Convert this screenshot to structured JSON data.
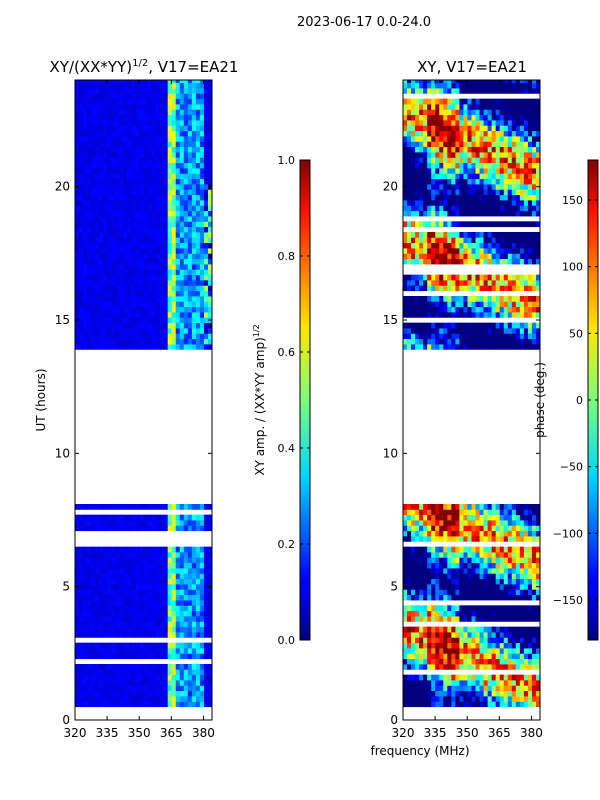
{
  "figure": {
    "suptitle": "2023-06-17 0.0-24.0",
    "shared_xlabel": "frequency (MHz)"
  },
  "chart_data": [
    {
      "type": "heatmap",
      "title": "XY/(XX*YY)",
      "title_exponent": "1/2",
      "title_suffix": ", V17=EA21",
      "xlabel": "",
      "ylabel": "UT (hours)",
      "xlim": [
        320,
        384
      ],
      "ylim": [
        0,
        24
      ],
      "xticks": [
        320,
        335,
        350,
        365,
        380
      ],
      "yticks": [
        0,
        5,
        10,
        15,
        20
      ],
      "data_gap_hours": [
        8.1,
        13.8
      ],
      "colorbar": {
        "label": "XY amp. / (XX*YY amp)",
        "label_exponent": "1/2",
        "range": [
          0.0,
          1.0
        ],
        "ticks": [
          "0.0",
          "0.2",
          "0.4",
          "0.6",
          "0.8",
          "1.0"
        ],
        "colormap": "jet"
      }
    },
    {
      "type": "heatmap",
      "title": "XY, V17=EA21",
      "xlabel": "frequency (MHz)",
      "ylabel": "phase (deg.)",
      "xlim": [
        320,
        384
      ],
      "ylim": [
        0,
        24
      ],
      "xticks": [
        320,
        335,
        350,
        365,
        380
      ],
      "yticks": [
        0,
        5,
        10,
        15,
        20
      ],
      "data_gap_hours": [
        8.1,
        13.8
      ],
      "colorbar": {
        "label": "phase (deg.)",
        "range": [
          -180,
          180
        ],
        "ticks": [
          "−150",
          "−100",
          "−50",
          "0",
          "50",
          "100",
          "150"
        ],
        "colormap": "jet"
      }
    }
  ]
}
